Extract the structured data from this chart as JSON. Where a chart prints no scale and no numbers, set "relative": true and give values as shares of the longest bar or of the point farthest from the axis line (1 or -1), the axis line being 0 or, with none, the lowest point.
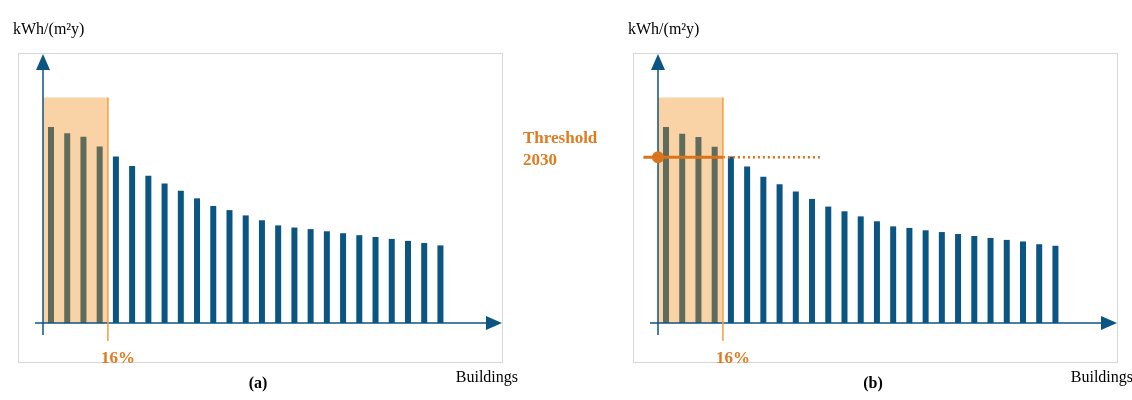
{
  "chart_data": [
    {
      "type": "bar",
      "relative": true,
      "title": "(a)",
      "xlabel": "Buildings",
      "ylabel": "kWh/(m²y)",
      "categories": [
        null,
        null,
        null,
        null,
        null,
        null,
        null,
        null,
        null,
        null,
        null,
        null,
        null,
        null,
        null,
        null,
        null,
        null,
        null,
        null,
        null,
        null,
        null,
        null,
        null
      ],
      "values": [
        1,
        0.968,
        0.95,
        0.901,
        0.85,
        0.801,
        0.751,
        0.712,
        0.675,
        0.636,
        0.597,
        0.576,
        0.549,
        0.524,
        0.498,
        0.487,
        0.479,
        0.468,
        0.458,
        0.448,
        0.439,
        0.429,
        0.419,
        0.408,
        0.396
      ],
      "colors": [
        "#5f6b5b",
        "#5f6b5b",
        "#5f6b5b",
        "#5f6b5b",
        "#0b5583",
        "#0b5583",
        "#0b5583",
        "#0b5583",
        "#0b5583",
        "#0b5583",
        "#0b5583",
        "#0b5583",
        "#0b5583",
        "#0b5583",
        "#0b5583",
        "#0b5583",
        "#0b5583",
        "#0b5583",
        "#0b5583",
        "#0b5583",
        "#0b5583",
        "#0b5583",
        "#0b5583",
        "#0b5583",
        "#0b5583"
      ],
      "annotations": [
        "16%"
      ]
    },
    {
      "type": "bar",
      "relative": true,
      "title": "(b)",
      "xlabel": "Buildings",
      "ylabel": "kWh/(m²y)",
      "categories": [
        null,
        null,
        null,
        null,
        null,
        null,
        null,
        null,
        null,
        null,
        null,
        null,
        null,
        null,
        null,
        null,
        null,
        null,
        null,
        null,
        null,
        null,
        null,
        null,
        null
      ],
      "values": [
        1,
        0.966,
        0.949,
        0.899,
        0.85,
        0.799,
        0.746,
        0.708,
        0.671,
        0.633,
        0.594,
        0.57,
        0.544,
        0.519,
        0.493,
        0.485,
        0.473,
        0.464,
        0.454,
        0.444,
        0.434,
        0.424,
        0.416,
        0.402,
        0.394
      ],
      "colors": [
        "#5f6b5b",
        "#5f6b5b",
        "#5f6b5b",
        "#5f6b5b",
        "#0b5583",
        "#0b5583",
        "#0b5583",
        "#0b5583",
        "#0b5583",
        "#0b5583",
        "#0b5583",
        "#0b5583",
        "#0b5583",
        "#0b5583",
        "#0b5583",
        "#0b5583",
        "#0b5583",
        "#0b5583",
        "#0b5583",
        "#0b5583",
        "#0b5583",
        "#0b5583",
        "#0b5583",
        "#0b5583",
        "#0b5583"
      ],
      "annotations": [
        "16%"
      ],
      "ref_lines": [
        {
          "axis": "y",
          "value": 0.846,
          "label": "Threshold 2030",
          "color": "#d9741c",
          "line_style": "dotted"
        }
      ]
    }
  ]
}
